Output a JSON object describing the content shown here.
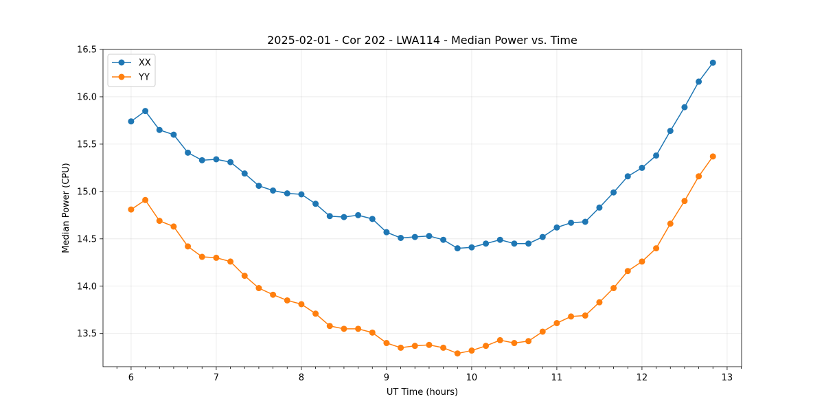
{
  "chart_data": {
    "type": "line",
    "title": "2025-02-01 - Cor 202 - LWA114 - Median Power vs. Time",
    "xlabel": "UT Time (hours)",
    "ylabel": "Median Power (CPU)",
    "xlim": [
      5.67,
      13.17
    ],
    "ylim": [
      13.15,
      16.5
    ],
    "xticks": [
      6,
      7,
      8,
      9,
      10,
      11,
      12,
      13
    ],
    "xtick_labels": [
      "6",
      "7",
      "8",
      "9",
      "10",
      "11",
      "12",
      "13"
    ],
    "yticks": [
      13.5,
      14.0,
      14.5,
      15.0,
      15.5,
      16.0,
      16.5
    ],
    "ytick_labels": [
      "13.5",
      "14.0",
      "14.5",
      "15.0",
      "15.5",
      "16.0",
      "16.5"
    ],
    "grid": true,
    "legend": "top-left",
    "x": [
      6.0,
      6.1667,
      6.3333,
      6.5,
      6.6667,
      6.8333,
      7.0,
      7.1667,
      7.3333,
      7.5,
      7.6667,
      7.8333,
      8.0,
      8.1667,
      8.3333,
      8.5,
      8.6667,
      8.8333,
      9.0,
      9.1667,
      9.3333,
      9.5,
      9.6667,
      9.8333,
      10.0,
      10.1667,
      10.3333,
      10.5,
      10.6667,
      10.8333,
      11.0,
      11.1667,
      11.3333,
      11.5,
      11.6667,
      11.8333,
      12.0,
      12.1667,
      12.3333,
      12.5,
      12.6667,
      12.8333
    ],
    "series": [
      {
        "name": "XX",
        "color": "#1f77b4",
        "values": [
          15.74,
          15.85,
          15.65,
          15.6,
          15.41,
          15.33,
          15.34,
          15.31,
          15.19,
          15.06,
          15.01,
          14.98,
          14.97,
          14.87,
          14.74,
          14.73,
          14.75,
          14.71,
          14.57,
          14.51,
          14.52,
          14.53,
          14.49,
          14.4,
          14.41,
          14.45,
          14.49,
          14.45,
          14.45,
          14.52,
          14.62,
          14.67,
          14.68,
          14.83,
          14.99,
          15.16,
          15.25,
          15.38,
          15.64,
          15.89,
          16.16,
          16.36
        ]
      },
      {
        "name": "YY",
        "color": "#ff7f0e",
        "values": [
          14.81,
          14.91,
          14.69,
          14.63,
          14.42,
          14.31,
          14.3,
          14.26,
          14.11,
          13.98,
          13.91,
          13.85,
          13.81,
          13.71,
          13.58,
          13.55,
          13.55,
          13.51,
          13.4,
          13.35,
          13.37,
          13.38,
          13.35,
          13.29,
          13.32,
          13.37,
          13.43,
          13.4,
          13.42,
          13.52,
          13.61,
          13.68,
          13.69,
          13.83,
          13.98,
          14.16,
          14.26,
          14.4,
          14.66,
          14.9,
          15.16,
          15.37
        ]
      }
    ]
  }
}
